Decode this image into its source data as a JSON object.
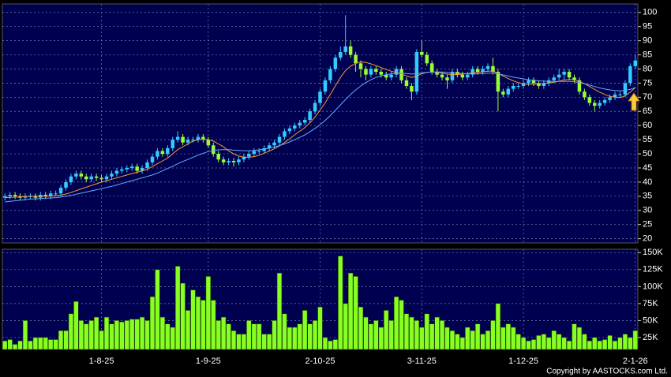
{
  "chart_data": [
    {
      "type": "candlestick",
      "open": [
        34.5,
        35,
        35.5,
        35,
        34.5,
        35,
        35,
        34.5,
        35.5,
        35,
        36,
        36,
        38,
        40,
        42,
        43,
        42,
        41,
        42,
        41.5,
        41,
        42,
        43,
        44,
        44.5,
        45,
        45.5,
        44,
        45,
        47,
        49,
        51,
        50,
        52,
        55,
        56,
        54,
        55,
        55,
        56,
        55,
        53,
        50,
        48,
        47,
        47.5,
        47,
        48,
        49,
        50,
        51,
        51,
        52,
        53,
        54,
        56,
        58,
        59,
        60,
        61,
        62,
        65,
        68,
        72,
        76,
        80,
        84,
        86,
        88,
        85,
        82,
        80,
        78,
        80,
        79,
        78,
        77,
        78,
        80,
        76,
        74,
        72,
        86,
        85,
        82,
        79,
        78,
        77,
        76,
        79,
        78,
        77,
        78,
        80,
        79,
        80,
        81,
        79,
        72,
        71,
        73,
        74,
        74,
        75,
        76,
        75,
        74,
        75,
        76,
        77,
        78,
        79,
        77,
        76,
        72,
        70,
        68,
        67,
        68,
        69,
        70,
        71,
        71,
        75,
        81
      ],
      "high": [
        36,
        36.5,
        36.5,
        36,
        36,
        36,
        36,
        36.5,
        36.5,
        37,
        37,
        39,
        41,
        43,
        44,
        44,
        43,
        43,
        43,
        42.5,
        43,
        44,
        45,
        45.5,
        46,
        46.5,
        46.5,
        46,
        48,
        50,
        52,
        52,
        53,
        56,
        58,
        57,
        56,
        56,
        57,
        57,
        56,
        54,
        51,
        49,
        48.5,
        48.5,
        49,
        50,
        51,
        52,
        52,
        53,
        54,
        55,
        57,
        59,
        60,
        61,
        62,
        63,
        66,
        69,
        73,
        77,
        81,
        85,
        88,
        99,
        90,
        86,
        83,
        81,
        81,
        81,
        80,
        79,
        79,
        81,
        81,
        77,
        75,
        87,
        90,
        86,
        83,
        80,
        79,
        78,
        80,
        80,
        79,
        79,
        81,
        81,
        81,
        82,
        84,
        80,
        73,
        74,
        75,
        75,
        76,
        77,
        77,
        76,
        76,
        77,
        78,
        80,
        80,
        80,
        78,
        77,
        73,
        71,
        69,
        69,
        70,
        71,
        72,
        72,
        76,
        82,
        85
      ],
      "low": [
        33.5,
        34,
        34,
        33.5,
        33.5,
        34,
        33.5,
        33.5,
        34,
        34,
        35,
        35,
        37,
        39,
        41,
        41,
        40,
        40,
        40.5,
        40,
        40,
        41,
        42,
        43,
        43.5,
        44,
        43,
        43,
        44,
        46,
        48,
        49,
        49,
        51,
        54,
        53,
        53,
        54,
        54,
        54,
        52,
        49,
        47,
        46,
        46,
        45.5,
        46,
        47,
        48,
        49,
        50,
        50,
        51,
        52,
        53,
        55,
        57,
        58,
        59,
        60,
        61,
        64,
        67,
        71,
        75,
        79,
        83,
        85,
        84,
        79,
        77,
        76,
        77,
        78,
        77,
        76,
        76,
        77,
        75,
        73,
        69,
        71,
        84,
        81,
        78,
        77,
        76,
        73,
        75,
        77,
        76,
        76,
        77,
        78,
        78,
        79,
        78,
        65,
        70,
        70,
        72,
        73,
        73,
        74,
        74,
        73,
        73,
        74,
        75,
        76,
        76,
        76,
        75,
        71,
        69,
        67,
        65,
        66,
        67,
        68,
        69,
        70,
        70,
        74,
        80
      ],
      "close": [
        35,
        35.5,
        35,
        34.5,
        35,
        35,
        34.5,
        35.5,
        35,
        36,
        36,
        38,
        40,
        42,
        43,
        42,
        41,
        42,
        41.5,
        41,
        42,
        43,
        44,
        44.5,
        45,
        45.5,
        44,
        45,
        47,
        49,
        51,
        50,
        52,
        55,
        56,
        54,
        55,
        55,
        56,
        55,
        53,
        50,
        48,
        47,
        47.5,
        47,
        48,
        49,
        50,
        51,
        51,
        52,
        53,
        54,
        56,
        58,
        59,
        60,
        61,
        62,
        65,
        68,
        72,
        76,
        80,
        84,
        86,
        88,
        85,
        82,
        80,
        78,
        80,
        79,
        78,
        77,
        78,
        80,
        76,
        74,
        72,
        86,
        85,
        82,
        79,
        78,
        77,
        76,
        79,
        78,
        77,
        78,
        80,
        79,
        80,
        81,
        79,
        72,
        71,
        73,
        74,
        74,
        75,
        76,
        75,
        74,
        75,
        76,
        77,
        78,
        79,
        77,
        76,
        72,
        70,
        68,
        67,
        68,
        69,
        70,
        71,
        71,
        75,
        81,
        83
      ],
      "up_color": "#33ccff",
      "down_color": "#99ff33",
      "lines": [
        {
          "color": "#ff9933",
          "values": [
            34.5,
            34.6,
            34.7,
            34.8,
            34.9,
            35,
            35,
            35,
            35,
            35.1,
            35.2,
            35.4,
            35.8,
            36.3,
            37,
            37.6,
            38.2,
            38.8,
            39.4,
            40,
            40.5,
            41,
            41.5,
            42,
            42.5,
            43,
            43.5,
            44,
            44.5,
            45.5,
            46.5,
            47.5,
            48.5,
            50,
            51.5,
            52.5,
            53.5,
            54.5,
            55,
            55.2,
            55,
            54.5,
            53.5,
            52.5,
            51,
            50,
            49.2,
            48.8,
            48.8,
            49,
            49.5,
            50.2,
            51,
            51.8,
            52.8,
            54,
            55.3,
            56.7,
            58,
            59.3,
            61,
            63,
            65.5,
            68,
            71,
            74,
            77,
            79.5,
            81,
            82,
            82.5,
            82.3,
            81.8,
            81.2,
            80.5,
            79.8,
            79.2,
            78.8,
            78.3,
            77.5,
            77,
            77.5,
            78.3,
            78.8,
            79,
            78.8,
            78.5,
            78.2,
            78,
            78,
            78.2,
            78.4,
            78.6,
            78.8,
            79,
            79.2,
            79.3,
            78.5,
            77.5,
            76.6,
            75.8,
            75.2,
            74.8,
            74.6,
            74.6,
            74.7,
            74.9,
            75,
            75.3,
            75.7,
            76.1,
            76.3,
            76.2,
            75.6,
            74.8,
            73.8,
            72.8,
            71.8,
            71,
            70.3,
            70,
            69.9,
            70.5,
            71.8,
            73.4
          ]
        },
        {
          "color": "#66aaff",
          "values": [
            33,
            33.2,
            33.4,
            33.6,
            33.8,
            34,
            34.1,
            34.2,
            34.3,
            34.4,
            34.5,
            34.7,
            35,
            35.3,
            35.7,
            36.1,
            36.5,
            36.9,
            37.3,
            37.7,
            38.1,
            38.5,
            39,
            39.5,
            40,
            40.5,
            41,
            41.5,
            42,
            42.5,
            43.2,
            44,
            44.8,
            45.6,
            46.5,
            47.3,
            48,
            48.8,
            49.5,
            50.2,
            50.8,
            51.2,
            51.4,
            51.5,
            51.5,
            51.3,
            51.2,
            51.1,
            51.1,
            51.2,
            51.4,
            51.7,
            52,
            52.4,
            52.9,
            53.5,
            54.2,
            55,
            55.8,
            56.7,
            57.8,
            59,
            60.3,
            61.8,
            63.5,
            65.4,
            67.3,
            69.2,
            71,
            72.6,
            74,
            75.2,
            76.2,
            77,
            77.6,
            78,
            78.3,
            78.5,
            78.5,
            78.4,
            78.2,
            78.3,
            78.6,
            78.8,
            78.9,
            79,
            78.9,
            78.8,
            78.6,
            78.5,
            78.4,
            78.3,
            78.3,
            78.3,
            78.4,
            78.5,
            78.6,
            78.3,
            77.9,
            77.5,
            77.1,
            76.8,
            76.5,
            76.2,
            76,
            75.8,
            75.7,
            75.6,
            75.6,
            75.6,
            75.6,
            75.6,
            75.5,
            75.2,
            74.8,
            74.3,
            73.8,
            73.3,
            72.9,
            72.6,
            72.4,
            72.3,
            72.4,
            72.8,
            73.4
          ]
        }
      ],
      "ylim": [
        18.5,
        103
      ],
      "yticks": [
        20,
        25,
        30,
        35,
        40,
        45,
        50,
        55,
        60,
        65,
        70,
        75,
        80,
        85,
        90,
        95,
        100
      ],
      "grid": true
    },
    {
      "type": "bar",
      "categories": [
        null,
        null,
        null,
        null,
        null,
        null,
        null,
        null,
        null,
        null,
        null,
        null,
        null,
        null,
        null,
        null,
        null,
        null,
        null,
        "1-8-25",
        null,
        null,
        null,
        null,
        null,
        null,
        null,
        null,
        null,
        null,
        null,
        null,
        null,
        null,
        null,
        null,
        null,
        null,
        null,
        null,
        "1-9-25",
        null,
        null,
        null,
        null,
        null,
        null,
        null,
        null,
        null,
        null,
        null,
        null,
        null,
        null,
        null,
        null,
        null,
        null,
        null,
        null,
        null,
        "2-10-25",
        null,
        null,
        null,
        null,
        null,
        null,
        null,
        null,
        null,
        null,
        null,
        null,
        null,
        null,
        null,
        null,
        null,
        null,
        null,
        "3-11-25",
        null,
        null,
        null,
        null,
        null,
        null,
        null,
        null,
        null,
        null,
        null,
        null,
        null,
        null,
        null,
        null,
        null,
        null,
        null,
        "1-12-25",
        null,
        null,
        null,
        null,
        null,
        null,
        null,
        null,
        null,
        null,
        null,
        null,
        null,
        null,
        null,
        null,
        null,
        null,
        null,
        null,
        null,
        "2-1-26"
      ],
      "values": [
        20000,
        22000,
        15000,
        20000,
        50000,
        20000,
        25000,
        25000,
        25000,
        22000,
        22000,
        35000,
        35000,
        60000,
        78000,
        50000,
        45000,
        50000,
        55000,
        35000,
        55000,
        45000,
        50000,
        48000,
        50000,
        52000,
        52000,
        55000,
        50000,
        85000,
        125000,
        55000,
        45000,
        40000,
        130000,
        105000,
        65000,
        95000,
        85000,
        80000,
        115000,
        80000,
        50000,
        55000,
        45000,
        35000,
        30000,
        30000,
        50000,
        45000,
        45000,
        30000,
        30000,
        50000,
        120000,
        60000,
        40000,
        40000,
        45000,
        65000,
        45000,
        50000,
        70000,
        25000,
        20000,
        22000,
        145000,
        75000,
        120000,
        115000,
        70000,
        55000,
        45000,
        50000,
        40000,
        65000,
        50000,
        85000,
        80000,
        60000,
        55000,
        50000,
        40000,
        60000,
        45000,
        55000,
        50000,
        40000,
        35000,
        30000,
        25000,
        40000,
        35000,
        45000,
        30000,
        35000,
        50000,
        75000,
        40000,
        45000,
        40000,
        30000,
        25000,
        20000,
        22000,
        28000,
        30000,
        25000,
        35000,
        30000,
        25000,
        20000,
        45000,
        40000,
        30000,
        20000,
        25000,
        20000,
        22000,
        28000,
        20000,
        25000,
        30000,
        25000,
        35000
      ],
      "color": "#88ff22",
      "ylim": [
        7500,
        155000
      ],
      "yticks": [
        {
          "value": 25000,
          "label": "25K"
        },
        {
          "value": 50000,
          "label": "50K"
        },
        {
          "value": 75000,
          "label": "75K"
        },
        {
          "value": 100000,
          "label": "100K"
        },
        {
          "value": 125000,
          "label": "125K"
        },
        {
          "value": 150000,
          "label": "150K"
        }
      ],
      "grid": true
    }
  ],
  "copyright": "Copyright by AASTOCKS.com Ltd."
}
